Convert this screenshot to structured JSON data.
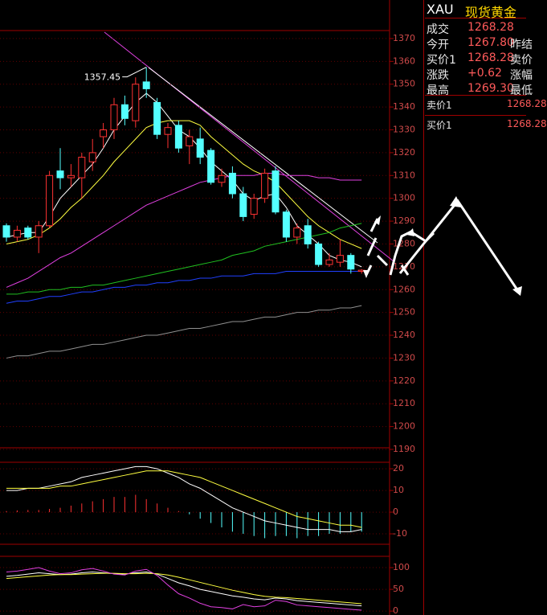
{
  "chart_data": [
    {
      "type": "candlestick",
      "open": [
        1288,
        1283,
        1287,
        1283,
        1288,
        1312,
        1309,
        1309,
        1316,
        1327,
        1330,
        1341,
        1334,
        1351,
        1342,
        1328,
        1332,
        1323,
        1326,
        1321,
        1307,
        1311,
        1302,
        1293,
        1300,
        1312,
        1294,
        1283,
        1288,
        1280,
        1271,
        1272,
        1275,
        1268
      ],
      "high": [
        1289,
        1288,
        1288,
        1290,
        1312,
        1322,
        1315,
        1320,
        1326,
        1333,
        1344,
        1345,
        1353,
        1357.45,
        1344,
        1333,
        1334,
        1330,
        1331,
        1322,
        1313,
        1314,
        1305,
        1302,
        1313,
        1314,
        1295,
        1289,
        1291,
        1281,
        1276,
        1282,
        1276,
        1269
      ],
      "low": [
        1281,
        1281,
        1282,
        1276,
        1287,
        1304,
        1305,
        1300,
        1312,
        1322,
        1326,
        1332,
        1331,
        1344,
        1326,
        1322,
        1320,
        1315,
        1315,
        1306,
        1305,
        1300,
        1290,
        1291,
        1298,
        1293,
        1281,
        1280,
        1278,
        1270,
        1270,
        1270,
        1267,
        1267
      ],
      "close": [
        1283,
        1286,
        1283,
        1288,
        1310,
        1309,
        1310,
        1318,
        1320,
        1330,
        1341,
        1335,
        1350,
        1348,
        1328,
        1331,
        1322,
        1327,
        1318,
        1307,
        1310,
        1302,
        1292,
        1300,
        1311,
        1294,
        1283,
        1287,
        1280,
        1271,
        1273,
        1275,
        1269,
        1268.5
      ],
      "up_color": "#ff3232",
      "down_color": "#54ffff",
      "series": [
        {
          "color": "#ffffff",
          "values": [
            1283,
            1284,
            1285,
            1285,
            1292,
            1300,
            1305,
            1310,
            1315,
            1322,
            1330,
            1336,
            1342,
            1346,
            1342,
            1336,
            1330,
            1327,
            1322,
            1316,
            1312,
            1308,
            1302,
            1299,
            1301,
            1302,
            1296,
            1288,
            1284,
            1280,
            1275,
            1273,
            1272,
            1270
          ]
        },
        {
          "color": "#ffff40",
          "values": [
            1280,
            1281,
            1282,
            1284,
            1287,
            1291,
            1296,
            1300,
            1305,
            1310,
            1316,
            1321,
            1326,
            1331,
            1333,
            1334,
            1334,
            1334,
            1332,
            1327,
            1323,
            1319,
            1315,
            1312,
            1310,
            1307,
            1302,
            1297,
            1292,
            1288,
            1285,
            1282,
            1280,
            1278
          ]
        },
        {
          "color": "#e040e0",
          "values": [
            1261,
            1263,
            1265,
            1268,
            1271,
            1274,
            1276,
            1279,
            1282,
            1285,
            1288,
            1291,
            1294,
            1297,
            1299,
            1301,
            1303,
            1305,
            1307,
            1308,
            1309,
            1310,
            1310,
            1310,
            1311,
            1311,
            1310,
            1310,
            1310,
            1309,
            1309,
            1308,
            1308,
            1308
          ]
        },
        {
          "color": "#20c020",
          "values": [
            1258,
            1258,
            1259,
            1259,
            1260,
            1260,
            1261,
            1261,
            1262,
            1262,
            1263,
            1264,
            1265,
            1266,
            1267,
            1268,
            1269,
            1270,
            1271,
            1272,
            1273,
            1275,
            1276,
            1277,
            1279,
            1280,
            1281,
            1282,
            1283,
            1284,
            1285,
            1287,
            1288,
            1289
          ]
        },
        {
          "color": "#2040ff",
          "values": [
            1254,
            1255,
            1255,
            1256,
            1257,
            1257,
            1258,
            1259,
            1259,
            1260,
            1261,
            1261,
            1262,
            1262,
            1263,
            1263,
            1264,
            1264,
            1265,
            1265,
            1266,
            1266,
            1266,
            1267,
            1267,
            1267,
            1268,
            1268,
            1268,
            1268,
            1268,
            1268,
            1268,
            1268
          ]
        },
        {
          "color": "#909090",
          "values": [
            1230,
            1231,
            1231,
            1232,
            1233,
            1233,
            1234,
            1235,
            1236,
            1236,
            1237,
            1238,
            1239,
            1240,
            1240,
            1241,
            1242,
            1243,
            1243,
            1244,
            1245,
            1246,
            1246,
            1247,
            1248,
            1248,
            1249,
            1250,
            1250,
            1251,
            1251,
            1252,
            1252,
            1253
          ]
        }
      ],
      "ylim": [
        1190,
        1373.5
      ],
      "yticks": [
        1190,
        1200,
        1210,
        1220,
        1230,
        1240,
        1250,
        1260,
        1270,
        1280,
        1290,
        1300,
        1310,
        1320,
        1330,
        1340,
        1350,
        1360,
        1370
      ],
      "grid": true
    },
    {
      "type": "macd",
      "values": [
        0.5,
        0.8,
        1,
        1,
        1.5,
        2,
        3,
        4,
        5,
        6,
        7,
        7,
        8,
        6,
        4,
        2,
        0.5,
        -1,
        -3,
        -5,
        -7,
        -9,
        -10,
        -11,
        -12,
        -11,
        -11,
        -12,
        -11,
        -11,
        -10,
        -10,
        -9,
        -9
      ],
      "up_color": "#ff3232",
      "down_color": "#54ffff",
      "series": [
        {
          "color": "#ffffff",
          "values": [
            10,
            10,
            11,
            11,
            12,
            13,
            14,
            16,
            17,
            18,
            19,
            20,
            21,
            21,
            20,
            18,
            16,
            13,
            11,
            8,
            5,
            2,
            0,
            -2,
            -4,
            -5,
            -6,
            -7,
            -8,
            -8,
            -8,
            -9,
            -9,
            -8
          ]
        },
        {
          "color": "#ffff40",
          "values": [
            11,
            11,
            11,
            11,
            11,
            12,
            12,
            13,
            14,
            15,
            16,
            17,
            18,
            19,
            19,
            19,
            18,
            17,
            16,
            14,
            12,
            10,
            8,
            6,
            4,
            2,
            0,
            -2,
            -3,
            -4,
            -5,
            -6,
            -6,
            -7
          ]
        }
      ],
      "ylim": [
        -14.8,
        23
      ],
      "yticks": [
        -10,
        0,
        10,
        20
      ],
      "grid": true
    },
    {
      "type": "line",
      "series": [
        {
          "color": "#ffffff",
          "values": [
            80,
            82,
            85,
            88,
            86,
            84,
            85,
            88,
            90,
            88,
            86,
            85,
            88,
            90,
            85,
            75,
            65,
            58,
            50,
            45,
            40,
            35,
            32,
            28,
            26,
            30,
            28,
            24,
            22,
            20,
            18,
            16,
            14,
            12
          ]
        },
        {
          "color": "#ffff40",
          "values": [
            75,
            77,
            79,
            81,
            83,
            84,
            84,
            85,
            86,
            87,
            87,
            86,
            86,
            87,
            86,
            83,
            78,
            72,
            66,
            60,
            54,
            48,
            43,
            38,
            34,
            32,
            31,
            29,
            27,
            25,
            23,
            21,
            19,
            17
          ]
        },
        {
          "color": "#e040e0",
          "values": [
            90,
            92,
            96,
            100,
            92,
            86,
            88,
            95,
            98,
            92,
            85,
            83,
            92,
            96,
            82,
            60,
            40,
            30,
            18,
            10,
            8,
            5,
            15,
            10,
            12,
            25,
            22,
            14,
            12,
            10,
            8,
            6,
            4,
            2
          ]
        }
      ],
      "ylim": [
        -9,
        126
      ],
      "yticks": [
        0,
        50,
        100
      ],
      "grid": true
    }
  ],
  "quote_panel": {
    "symbol": "XAU",
    "name": "现货黄金",
    "rows": [
      [
        "成交",
        "1268.28"
      ],
      [
        "今开",
        "1267.80",
        "昨结"
      ],
      [
        "买价1",
        "1268.28",
        "卖价"
      ],
      [
        "涨跌",
        "+0.62",
        "涨幅"
      ],
      [
        "最高",
        "1269.30",
        "最低"
      ]
    ],
    "book": [
      [
        "卖价1",
        "1268.28"
      ],
      [
        "买价1",
        "1268.28"
      ]
    ]
  }
}
